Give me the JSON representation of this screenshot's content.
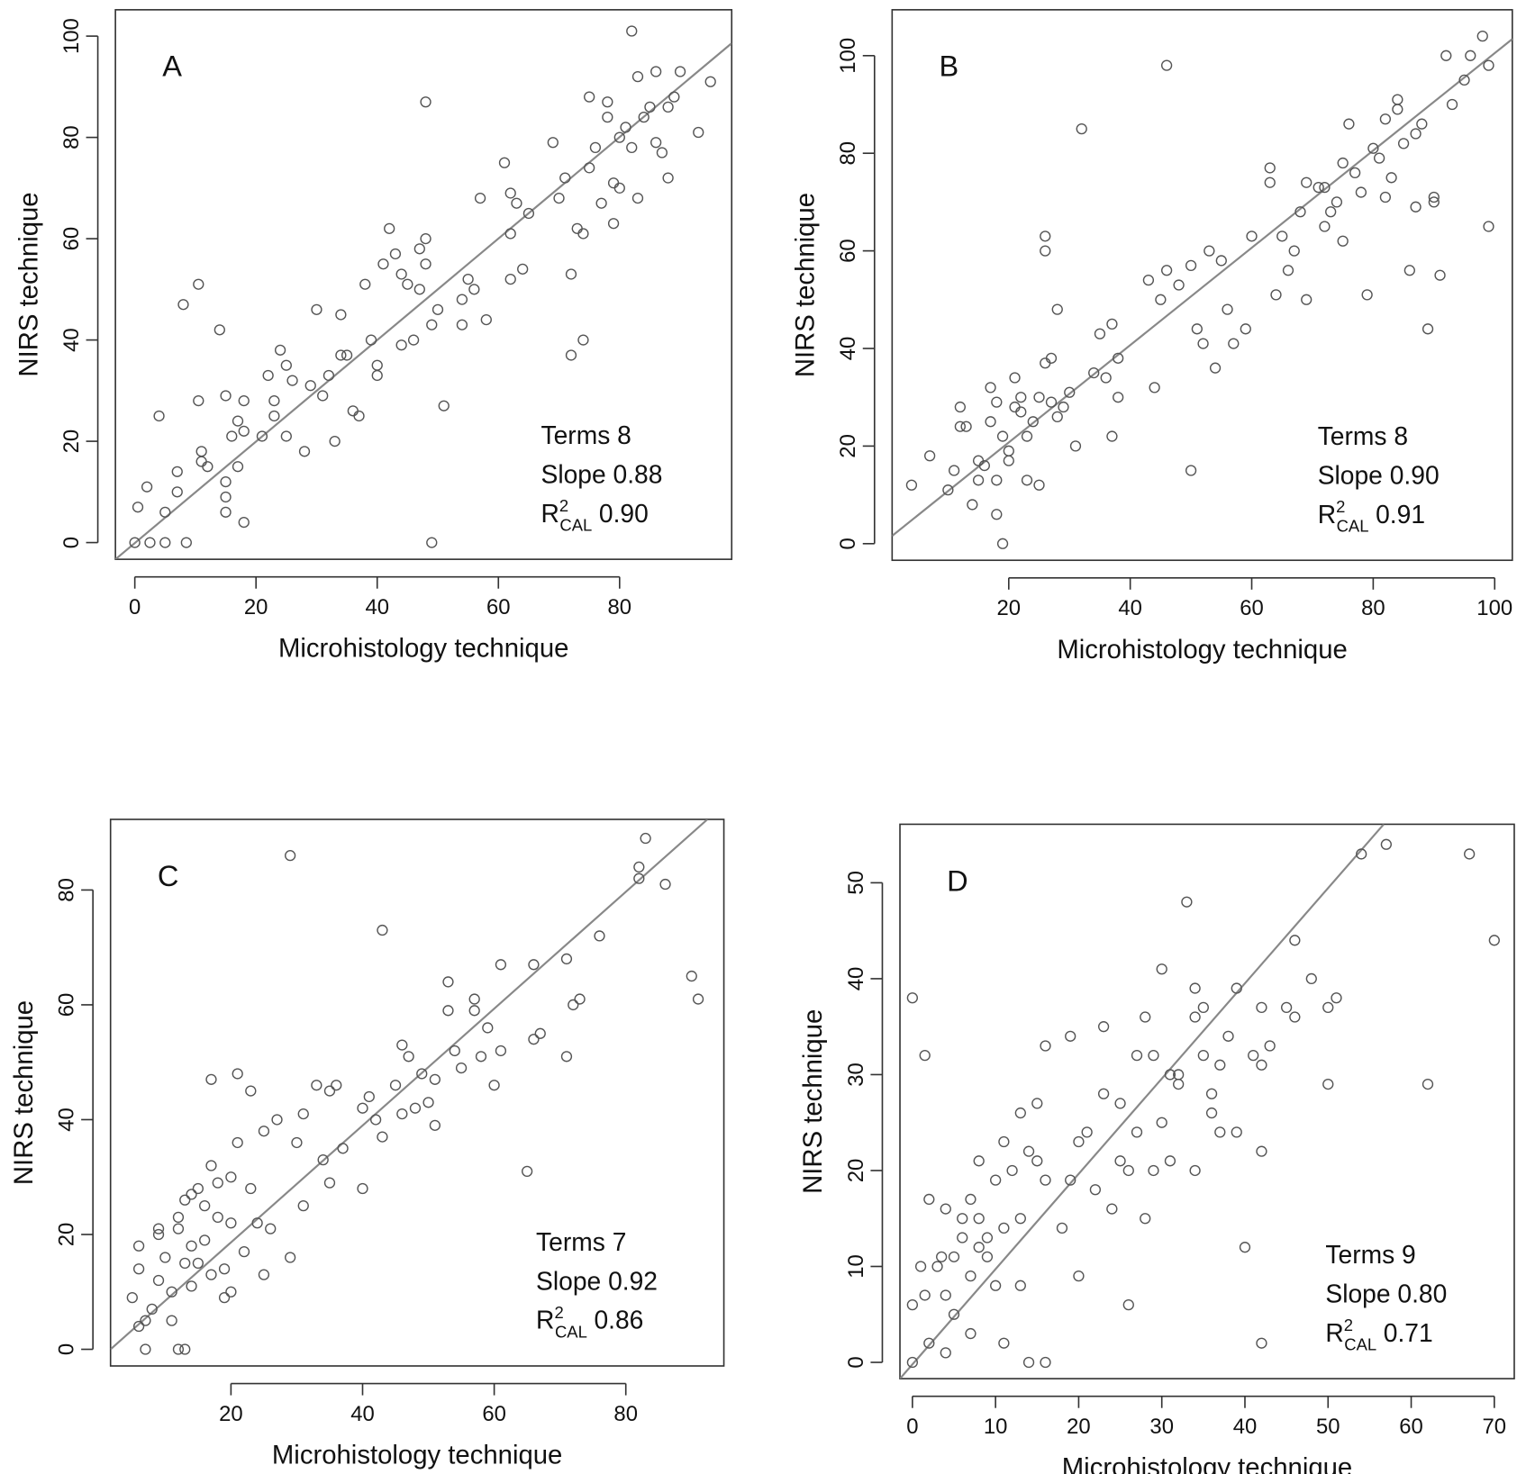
{
  "chart_data": [
    {
      "type": "scatter",
      "label": "A",
      "xlabel": "Microhistology technique",
      "ylabel": "NIRS technique",
      "annotation": {
        "terms": "Terms 8",
        "slope": "Slope 0.88",
        "r2": {
          "symbol": "R",
          "sup": "2",
          "sub": "CAL",
          "value": "0.90"
        }
      },
      "xlim": [
        -3.2,
        98.5
      ],
      "ylim": [
        -3.3,
        105.2
      ],
      "xticks": [
        0,
        20,
        40,
        60,
        80
      ],
      "yticks": [
        0,
        20,
        40,
        60,
        80,
        100
      ],
      "color": "#555555",
      "fit_line": {
        "x": [
          -3.2,
          98.5
        ],
        "y": [
          -3.3,
          98.6
        ],
        "color": "#888888"
      },
      "x": [
        0,
        0.5,
        2,
        2.5,
        4,
        5,
        5,
        7,
        7,
        8,
        8.5,
        10.5,
        10.5,
        11,
        11,
        12,
        14,
        15,
        15,
        15,
        15,
        16,
        17,
        17,
        18,
        18,
        18,
        21,
        22,
        23,
        23,
        24,
        25,
        25,
        26,
        28,
        29,
        30,
        31,
        32,
        33,
        34,
        34,
        35,
        36,
        37,
        38,
        39,
        40,
        40,
        41,
        42,
        43,
        44,
        44,
        45,
        46,
        47,
        47,
        48,
        48,
        48,
        49,
        49,
        50,
        51,
        54,
        54,
        55,
        56,
        57,
        58,
        61,
        62,
        62,
        62,
        63,
        64,
        65,
        69,
        70,
        71,
        72,
        72,
        73,
        74,
        74,
        75,
        75,
        76,
        77,
        78,
        78,
        79,
        79,
        80,
        80,
        81,
        82,
        82,
        83,
        83,
        84,
        85,
        86,
        86,
        87,
        88,
        88,
        89,
        90,
        93,
        95
      ],
      "y": [
        0,
        7,
        11,
        0,
        25,
        0,
        6,
        10,
        14,
        47,
        0,
        28,
        51,
        16,
        18,
        15,
        42,
        9,
        12,
        29,
        6,
        21,
        15,
        24,
        4,
        28,
        22,
        21,
        33,
        28,
        25,
        38,
        21,
        35,
        32,
        18,
        31,
        46,
        29,
        33,
        20,
        37,
        45,
        37,
        26,
        25,
        51,
        40,
        33,
        35,
        55,
        62,
        57,
        39,
        53,
        51,
        40,
        50,
        58,
        60,
        55,
        87,
        43,
        0,
        46,
        27,
        43,
        48,
        52,
        50,
        68,
        44,
        75,
        61,
        52,
        69,
        67,
        54,
        65,
        79,
        68,
        72,
        37,
        53,
        62,
        40,
        61,
        88,
        74,
        78,
        67,
        84,
        87,
        63,
        71,
        70,
        80,
        82,
        101,
        78,
        68,
        92,
        84,
        86,
        93,
        79,
        77,
        72,
        86,
        88,
        93,
        81,
        91
      ]
    },
    {
      "type": "scatter",
      "label": "B",
      "xlabel": "Microhistology technique",
      "ylabel": "NIRS technique",
      "annotation": {
        "terms": "Terms 8",
        "slope": "Slope 0.90",
        "r2": {
          "symbol": "R",
          "sup": "2",
          "sub": "CAL",
          "value": "0.91"
        }
      },
      "xlim": [
        0.8,
        102.9
      ],
      "ylim": [
        -3.4,
        109.4
      ],
      "xticks": [
        20,
        40,
        60,
        80,
        100
      ],
      "yticks": [
        0,
        20,
        40,
        60,
        80,
        100
      ],
      "color": "#555555",
      "fit_line": {
        "x": [
          0.8,
          102.9
        ],
        "y": [
          1.6,
          103.4
        ],
        "color": "#888888"
      },
      "x": [
        4,
        7,
        10,
        11,
        12,
        12,
        13,
        14,
        15,
        15,
        16,
        17,
        17,
        18,
        18,
        18,
        19,
        19,
        20,
        20,
        21,
        21,
        22,
        22,
        23,
        23,
        24,
        25,
        25,
        26,
        26,
        26,
        27,
        27,
        28,
        28,
        29,
        30,
        31,
        32,
        34,
        35,
        36,
        37,
        37,
        38,
        38,
        43,
        44,
        45,
        46,
        46,
        48,
        50,
        50,
        51,
        52,
        53,
        54,
        55,
        56,
        57,
        59,
        60,
        63,
        63,
        64,
        65,
        66,
        67,
        68,
        69,
        69,
        71,
        72,
        72,
        73,
        74,
        75,
        75,
        76,
        77,
        78,
        79,
        80,
        81,
        82,
        82,
        83,
        84,
        84,
        85,
        86,
        87,
        87,
        88,
        89,
        90,
        90,
        91,
        93,
        92,
        95,
        96,
        98,
        99,
        99
      ],
      "y": [
        12,
        18,
        11,
        15,
        24,
        28,
        24,
        8,
        17,
        13,
        16,
        25,
        32,
        13,
        6,
        29,
        0,
        22,
        17,
        19,
        34,
        28,
        27,
        30,
        13,
        22,
        25,
        30,
        12,
        37,
        60,
        63,
        29,
        38,
        48,
        26,
        28,
        31,
        20,
        85,
        35,
        43,
        34,
        22,
        45,
        30,
        38,
        54,
        32,
        50,
        56,
        98,
        53,
        57,
        15,
        44,
        41,
        60,
        36,
        58,
        48,
        41,
        44,
        63,
        77,
        74,
        51,
        63,
        56,
        60,
        68,
        74,
        50,
        73,
        73,
        65,
        68,
        70,
        78,
        62,
        86,
        76,
        72,
        51,
        81,
        79,
        87,
        71,
        75,
        89,
        91,
        82,
        56,
        84,
        69,
        86,
        44,
        71,
        70,
        55,
        90,
        100,
        95,
        100,
        104,
        65,
        98
      ]
    },
    {
      "type": "scatter",
      "label": "C",
      "xlabel": "Microhistology technique",
      "ylabel": "NIRS technique",
      "annotation": {
        "terms": "Terms 7",
        "slope": "Slope 0.92",
        "r2": {
          "symbol": "R",
          "sup": "2",
          "sub": "CAL",
          "value": "0.86"
        }
      },
      "xlim": [
        1.7,
        94.9
      ],
      "ylim": [
        -2.9,
        92.3
      ],
      "xticks": [
        20,
        40,
        60,
        80
      ],
      "yticks": [
        0,
        20,
        40,
        60,
        80
      ],
      "color": "#555555",
      "fit_line": {
        "x": [
          1.7,
          92.4
        ],
        "y": [
          0,
          92.3
        ],
        "color": "#888888"
      },
      "x": [
        5,
        6,
        6,
        6,
        7,
        7,
        8,
        9,
        9,
        9,
        10,
        11,
        11,
        12,
        12,
        12,
        13,
        13,
        13,
        14,
        14,
        14,
        15,
        15,
        16,
        16,
        17,
        17,
        17,
        18,
        18,
        19,
        19,
        20,
        20,
        20,
        21,
        21,
        22,
        23,
        23,
        24,
        25,
        25,
        26,
        27,
        29,
        29,
        30,
        31,
        31,
        33,
        34,
        35,
        35,
        36,
        37,
        40,
        40,
        41,
        42,
        43,
        43,
        45,
        46,
        46,
        47,
        48,
        49,
        50,
        51,
        51,
        53,
        53,
        54,
        55,
        57,
        57,
        58,
        59,
        60,
        61,
        61,
        65,
        66,
        66,
        67,
        71,
        71,
        72,
        73,
        76,
        82,
        82,
        83,
        86,
        90,
        91
      ],
      "y": [
        9,
        4,
        14,
        18,
        0,
        5,
        7,
        12,
        20,
        21,
        16,
        10,
        5,
        23,
        21,
        0,
        0,
        15,
        26,
        11,
        18,
        27,
        15,
        28,
        19,
        25,
        32,
        13,
        47,
        23,
        29,
        14,
        9,
        10,
        22,
        30,
        48,
        36,
        17,
        28,
        45,
        22,
        38,
        13,
        21,
        40,
        16,
        86,
        36,
        41,
        25,
        46,
        33,
        29,
        45,
        46,
        35,
        42,
        28,
        44,
        40,
        73,
        37,
        46,
        53,
        41,
        51,
        42,
        48,
        43,
        47,
        39,
        64,
        59,
        52,
        49,
        59,
        61,
        51,
        56,
        46,
        52,
        67,
        31,
        67,
        54,
        55,
        68,
        51,
        60,
        61,
        72,
        82,
        84,
        89,
        81,
        65,
        61
      ]
    },
    {
      "type": "scatter",
      "label": "D",
      "xlabel": "Microhistology technique",
      "ylabel": "NIRS technique",
      "annotation": {
        "terms": "Terms 9",
        "slope": "Slope 0.80",
        "r2": {
          "symbol": "R",
          "sup": "2",
          "sub": "CAL",
          "value": "0.71"
        }
      },
      "xlim": [
        -1.5,
        72.4
      ],
      "ylim": [
        -1.7,
        56.1
      ],
      "xticks": [
        0,
        10,
        20,
        30,
        40,
        50,
        60,
        70
      ],
      "yticks": [
        0,
        10,
        20,
        30,
        40,
        50
      ],
      "color": "#555555",
      "fit_line": {
        "x": [
          -1.5,
          56.7
        ],
        "y": [
          -1.7,
          56.1
        ],
        "color": "#888888"
      },
      "x": [
        0,
        0,
        0,
        1,
        1.5,
        1.5,
        2,
        2,
        3,
        3.5,
        4,
        4,
        4,
        5,
        5,
        6,
        6,
        7,
        7,
        7,
        8,
        8,
        8,
        9,
        9,
        10,
        10,
        11,
        11,
        11,
        12,
        13,
        13,
        13,
        14,
        14,
        15,
        15,
        16,
        16,
        16,
        18,
        19,
        19,
        20,
        20,
        21,
        22,
        23,
        23,
        24,
        25,
        25,
        26,
        26,
        27,
        27,
        28,
        28,
        29,
        29,
        30,
        30,
        31,
        31,
        32,
        32,
        33,
        34,
        34,
        34,
        35,
        35,
        36,
        36,
        37,
        37,
        38,
        39,
        39,
        40,
        41,
        42,
        42,
        42,
        42,
        43,
        45,
        46,
        46,
        48,
        50,
        50,
        51,
        54,
        57,
        62,
        67,
        70
      ],
      "y": [
        0,
        6,
        38,
        10,
        32,
        7,
        17,
        2,
        10,
        11,
        16,
        1,
        7,
        11,
        5,
        15,
        13,
        17,
        9,
        3,
        21,
        12,
        15,
        13,
        11,
        8,
        19,
        23,
        14,
        2,
        20,
        26,
        8,
        15,
        22,
        0,
        27,
        21,
        19,
        0,
        33,
        14,
        34,
        19,
        23,
        9,
        24,
        18,
        35,
        28,
        16,
        21,
        27,
        20,
        6,
        32,
        24,
        36,
        15,
        20,
        32,
        41,
        25,
        30,
        21,
        30,
        29,
        48,
        36,
        39,
        20,
        32,
        37,
        26,
        28,
        31,
        24,
        34,
        39,
        24,
        12,
        32,
        37,
        22,
        31,
        2,
        33,
        37,
        44,
        36,
        40,
        37,
        29,
        38,
        53,
        54,
        29,
        53,
        44
      ]
    }
  ]
}
